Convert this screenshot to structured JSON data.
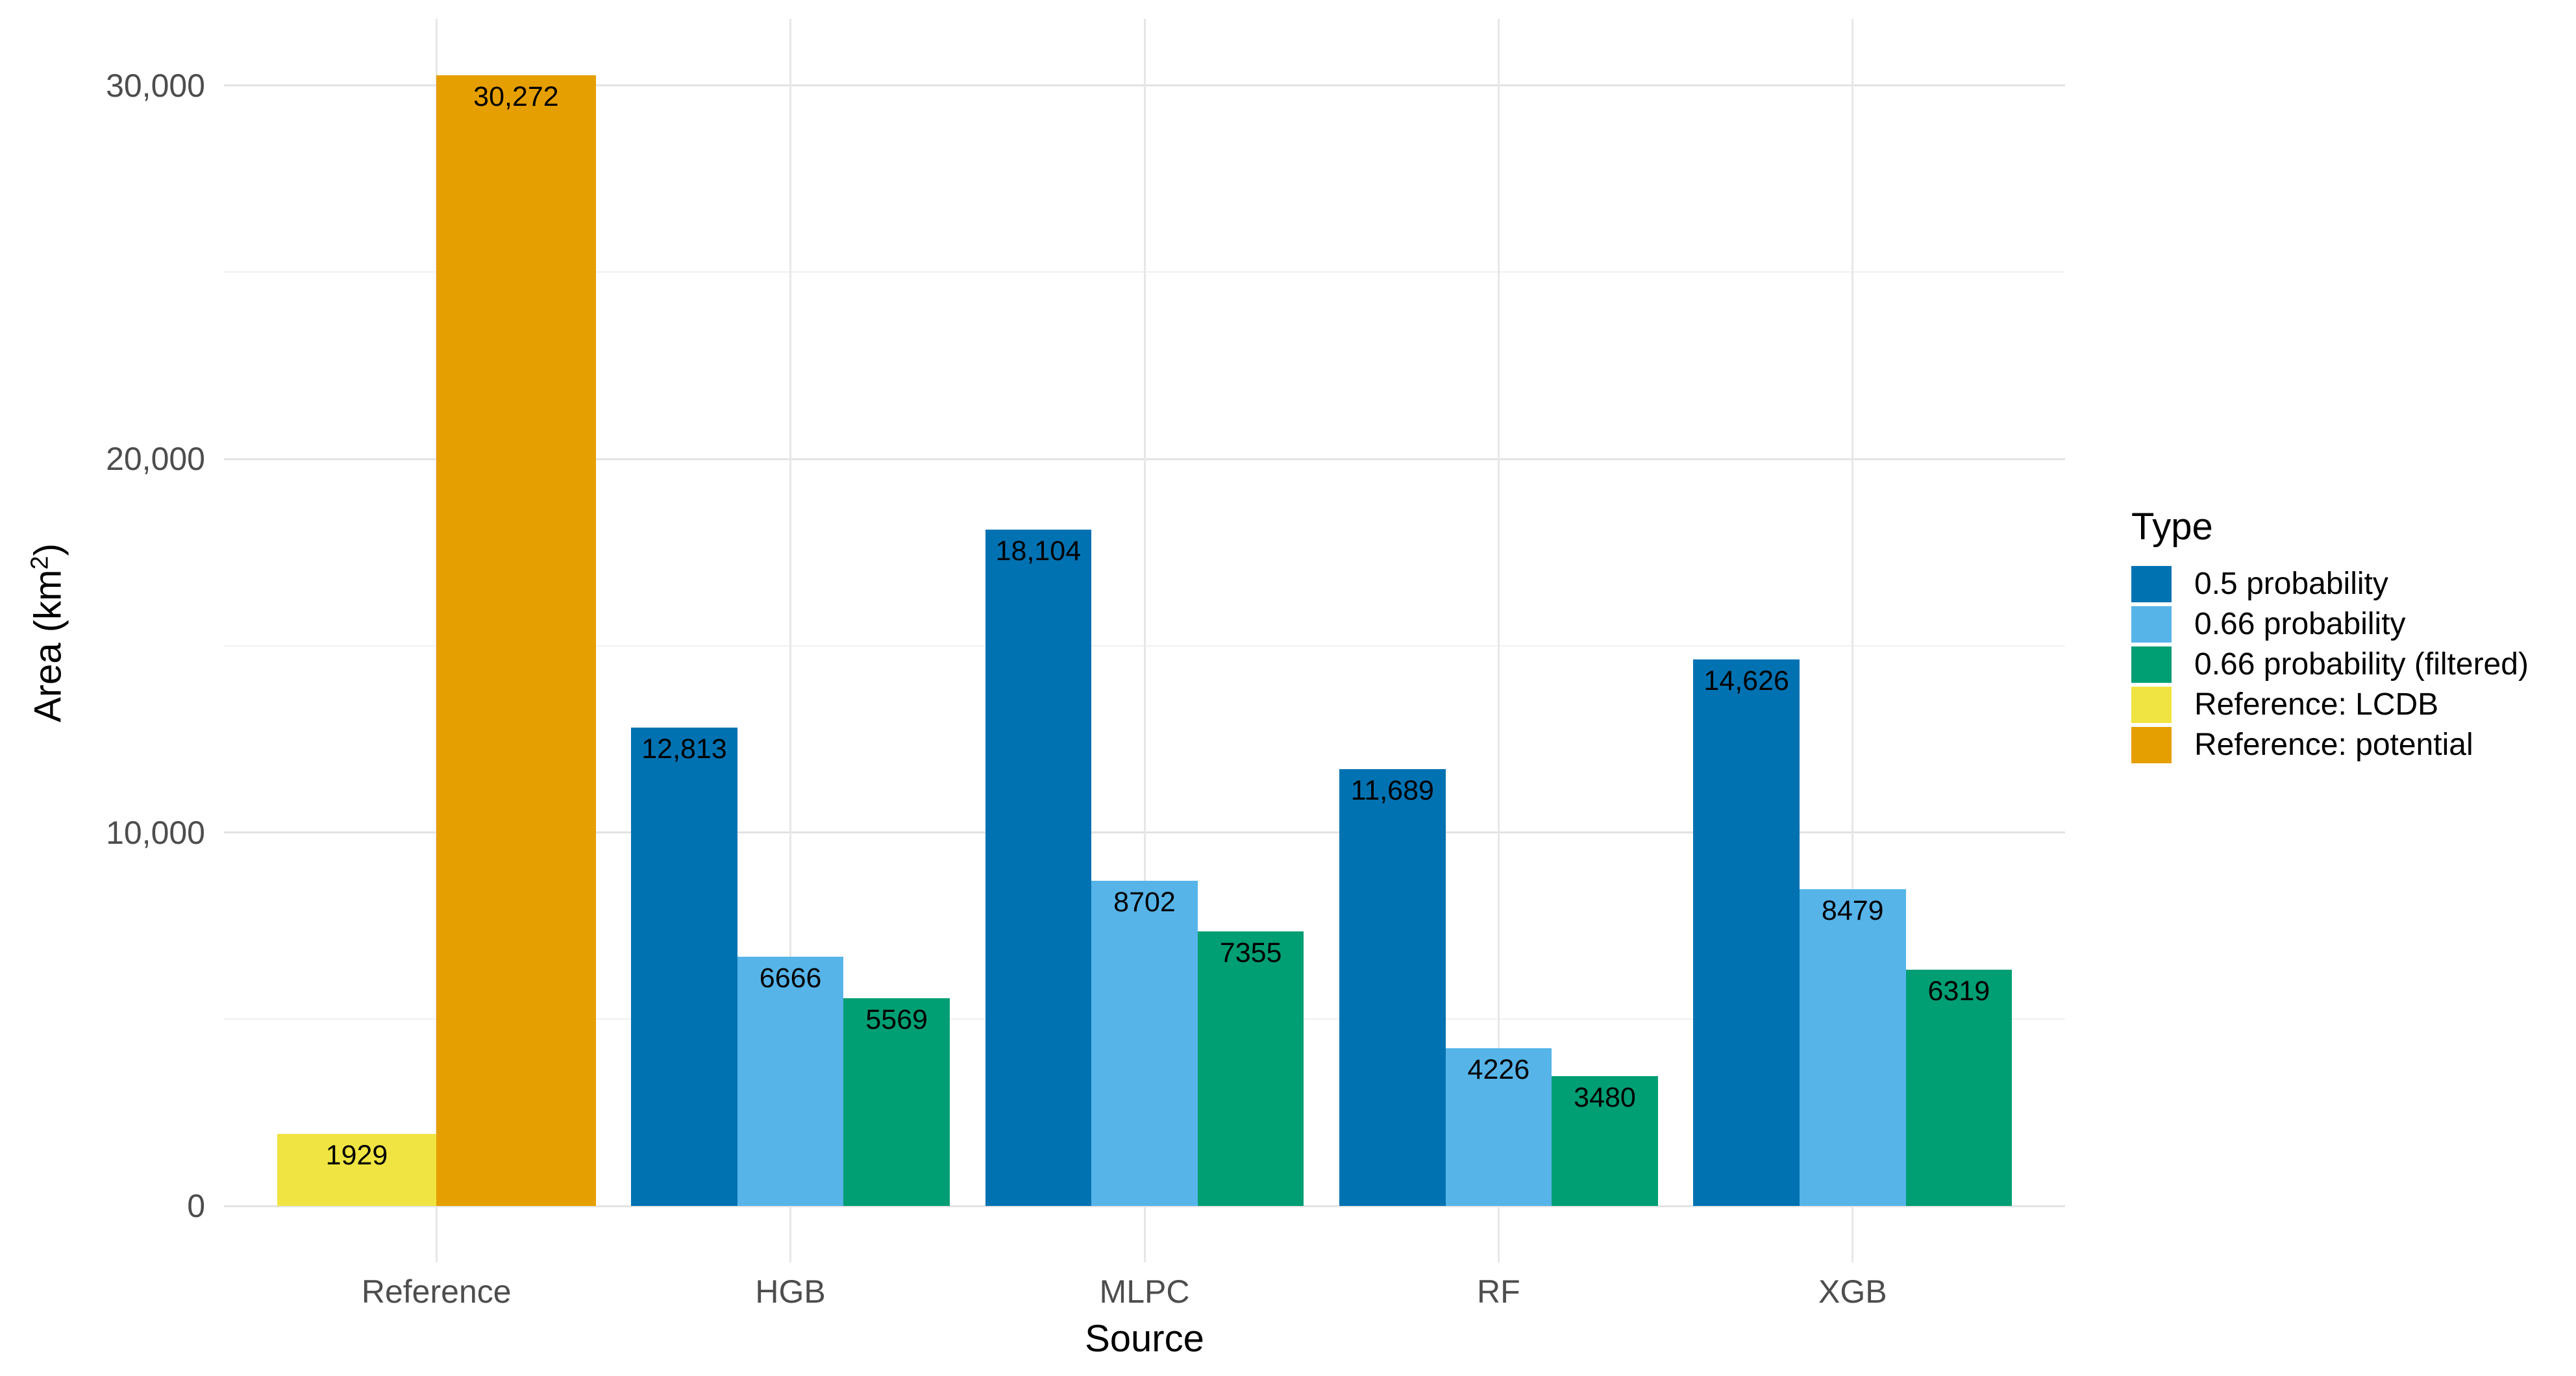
{
  "figure_background": "#ffffff",
  "chart_data": {
    "type": "bar",
    "title": "",
    "xlabel": "Source",
    "ylabel": {
      "base": "Area (km",
      "sup": "2",
      "close": ")"
    },
    "ylim": [
      0,
      31786
    ],
    "grid": "major and minor, horizontal + vertical category lines",
    "legend_position": "right",
    "y_major_ticks": [
      {
        "value": 0,
        "label": "0"
      },
      {
        "value": 10000,
        "label": "10,000"
      },
      {
        "value": 20000,
        "label": "20,000"
      },
      {
        "value": 30000,
        "label": "30,000"
      }
    ],
    "y_minor_ticks": [
      5000,
      15000,
      25000
    ],
    "legend": {
      "title": "Type",
      "items": [
        {
          "label": "0.5 probability",
          "color": "#0072B2"
        },
        {
          "label": "0.66 probability",
          "color": "#56B4E9"
        },
        {
          "label": "0.66 probability (filtered)",
          "color": "#009E73"
        },
        {
          "label": "Reference: LCDB",
          "color": "#F0E442"
        },
        {
          "label": "Reference: potential",
          "color": "#E69F00"
        }
      ]
    },
    "categories": [
      {
        "label": "Reference",
        "bars": [
          {
            "series": "Reference: LCDB",
            "value": 1929,
            "label": "1929",
            "color": "#F0E442"
          },
          {
            "series": "Reference: potential",
            "value": 30272,
            "label": "30,272",
            "color": "#E69F00"
          }
        ]
      },
      {
        "label": "HGB",
        "bars": [
          {
            "series": "0.5 probability",
            "value": 12813,
            "label": "12,813",
            "color": "#0072B2"
          },
          {
            "series": "0.66 probability",
            "value": 6666,
            "label": "6666",
            "color": "#56B4E9"
          },
          {
            "series": "0.66 probability (filtered)",
            "value": 5569,
            "label": "5569",
            "color": "#009E73"
          }
        ]
      },
      {
        "label": "MLPC",
        "bars": [
          {
            "series": "0.5 probability",
            "value": 18104,
            "label": "18,104",
            "color": "#0072B2"
          },
          {
            "series": "0.66 probability",
            "value": 8702,
            "label": "8702",
            "color": "#56B4E9"
          },
          {
            "series": "0.66 probability (filtered)",
            "value": 7355,
            "label": "7355",
            "color": "#009E73"
          }
        ]
      },
      {
        "label": "RF",
        "bars": [
          {
            "series": "0.5 probability",
            "value": 11689,
            "label": "11,689",
            "color": "#0072B2"
          },
          {
            "series": "0.66 probability",
            "value": 4226,
            "label": "4226",
            "color": "#56B4E9"
          },
          {
            "series": "0.66 probability (filtered)",
            "value": 3480,
            "label": "3480",
            "color": "#009E73"
          }
        ]
      },
      {
        "label": "XGB",
        "bars": [
          {
            "series": "0.5 probability",
            "value": 14626,
            "label": "14,626",
            "color": "#0072B2"
          },
          {
            "series": "0.66 probability",
            "value": 8479,
            "label": "8479",
            "color": "#56B4E9"
          },
          {
            "series": "0.66 probability (filtered)",
            "value": 6319,
            "label": "6319",
            "color": "#009E73"
          }
        ]
      }
    ]
  }
}
